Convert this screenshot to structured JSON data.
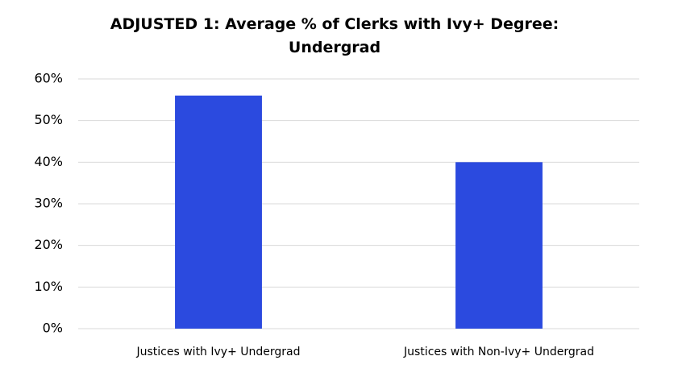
{
  "chart_data": {
    "type": "bar",
    "title": "ADJUSTED 1: Average % of Clerks with Ivy+ Degree: Undergrad",
    "categories": [
      "Justices with Ivy+ Undergrad",
      "Justices with Non-Ivy+ Undergrad"
    ],
    "values": [
      56,
      40
    ],
    "color": "#2b4adf",
    "ylim": [
      0,
      60
    ],
    "yticks": [
      {
        "value": 0,
        "label": "0%"
      },
      {
        "value": 10,
        "label": "10%"
      },
      {
        "value": 20,
        "label": "20%"
      },
      {
        "value": 30,
        "label": "30%"
      },
      {
        "value": 40,
        "label": "40%"
      },
      {
        "value": 50,
        "label": "50%"
      },
      {
        "value": 60,
        "label": "60%"
      }
    ],
    "grid": true
  }
}
